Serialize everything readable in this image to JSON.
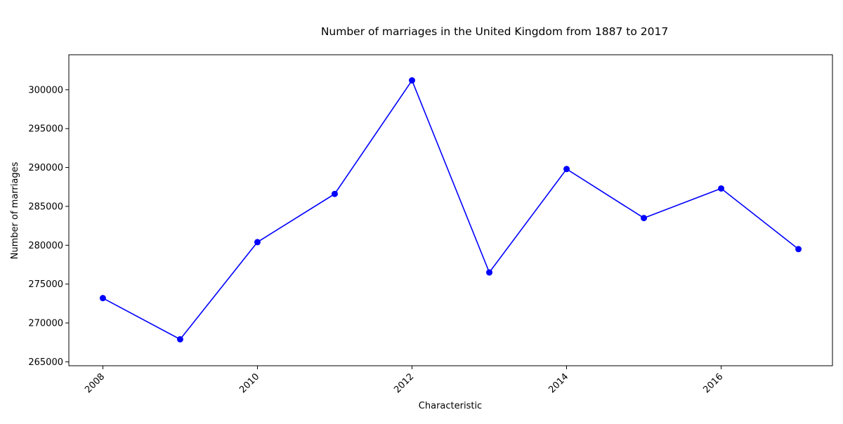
{
  "chart_data": {
    "type": "line",
    "title": "Number of marriages in the United Kingdom from 1887 to 2017",
    "xlabel": "Characteristic",
    "ylabel": "Number of marriages",
    "x": [
      2008,
      2009,
      2010,
      2011,
      2012,
      2013,
      2014,
      2015,
      2016,
      2017
    ],
    "series": [
      {
        "values": [
          273200,
          267900,
          280400,
          286600,
          301200,
          276500,
          289800,
          283500,
          287300,
          279500
        ],
        "color": "#0000ff",
        "marker": "circle"
      }
    ],
    "x_ticks": [
      "2008",
      "2010",
      "2012",
      "2014",
      "2016"
    ],
    "y_ticks": [
      "265000",
      "270000",
      "275000",
      "280000",
      "285000",
      "290000",
      "295000",
      "300000"
    ],
    "xlim": [
      2007.56,
      2017.44
    ],
    "ylim": [
      264500,
      304500
    ],
    "grid": false,
    "legend": "none"
  }
}
